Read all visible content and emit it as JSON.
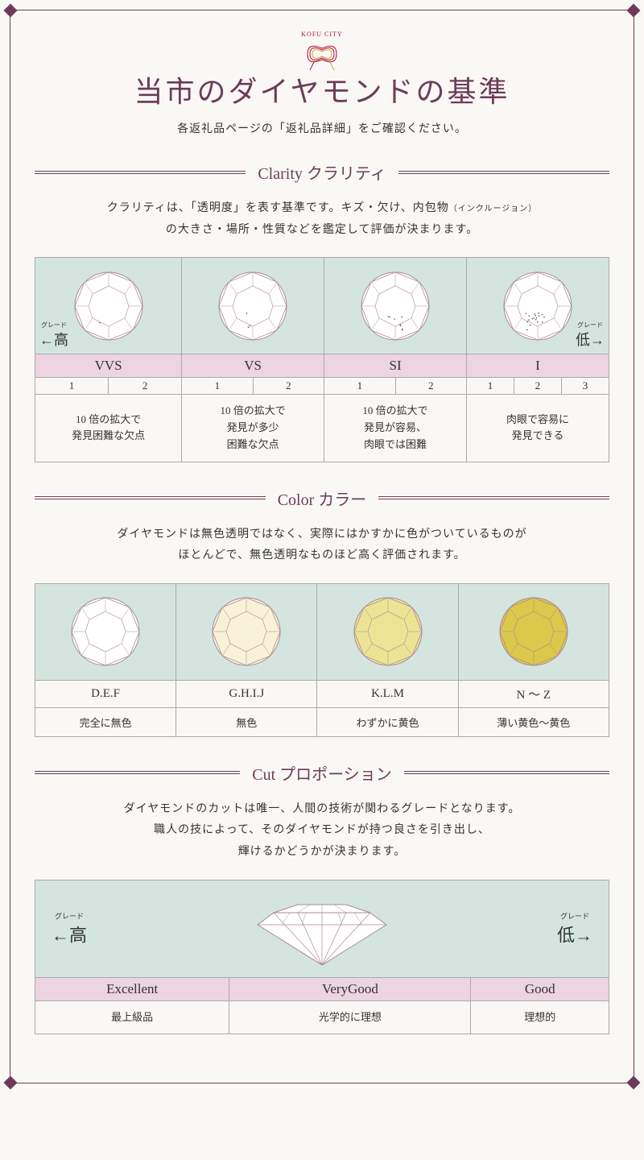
{
  "logo_text": "KOFU CITY",
  "title": "当市のダイヤモンドの基準",
  "subtitle": "各返礼品ページの「返礼品詳細」をご確認ください。",
  "grade_high": "高",
  "grade_low": "低",
  "grade_ruby": "グレード",
  "colors": {
    "accent": "#6d3b5a",
    "pink": "#ecd4e3",
    "mint": "#d4e5e0",
    "border": "#aaaaaa",
    "bg": "#faf8f5"
  },
  "clarity": {
    "heading": "Clarity クラリティ",
    "desc_line1": "クラリティは、「透明度」を表す基準です。キズ・欠け、内包物",
    "desc_small": "（インクルージョン）",
    "desc_line2": "の大きさ・場所・性質などを鑑定して評価が決まります。",
    "grades": [
      {
        "name": "VVS",
        "subs": [
          "1",
          "2"
        ],
        "desc": "10 倍の拡大で\n発見困難な欠点"
      },
      {
        "name": "VS",
        "subs": [
          "1",
          "2"
        ],
        "desc": "10 倍の拡大で\n発見が多少\n困難な欠点"
      },
      {
        "name": "SI",
        "subs": [
          "1",
          "2"
        ],
        "desc": "10 倍の拡大で\n発見が容易、\n肉眼では困難"
      },
      {
        "name": "I",
        "subs": [
          "1",
          "2",
          "3"
        ],
        "desc": "肉眼で容易に\n発見できる"
      }
    ]
  },
  "color": {
    "heading": "Color カラー",
    "desc_line1": "ダイヤモンドは無色透明ではなく、実際にはかすかに色がついているものが",
    "desc_line2": "ほとんどで、無色透明なものほど高く評価されます。",
    "grades": [
      {
        "label": "D.E.F",
        "desc": "完全に無色",
        "fill": "#ffffff"
      },
      {
        "label": "G.H.I.J",
        "desc": "無色",
        "fill": "#f8f3d8"
      },
      {
        "label": "K.L.M",
        "desc": "わずかに黄色",
        "fill": "#ede394"
      },
      {
        "label": "N ～ Z",
        "desc": "薄い黄色〜黄色",
        "fill": "#dcc94c"
      }
    ]
  },
  "cut": {
    "heading": "Cut プロポーション",
    "desc_line1": "ダイヤモンドのカットは唯一、人間の技術が関わるグレードとなります。",
    "desc_line2": "職人の技によって、そのダイヤモンドが持つ良さを引き出し、",
    "desc_line3": "輝けるかどうかが決まります。",
    "grades": [
      {
        "label": "Excellent",
        "desc": "最上級品"
      },
      {
        "label": "VeryGood",
        "desc": "光学的に理想"
      },
      {
        "label": "Good",
        "desc": "理想的"
      }
    ]
  }
}
